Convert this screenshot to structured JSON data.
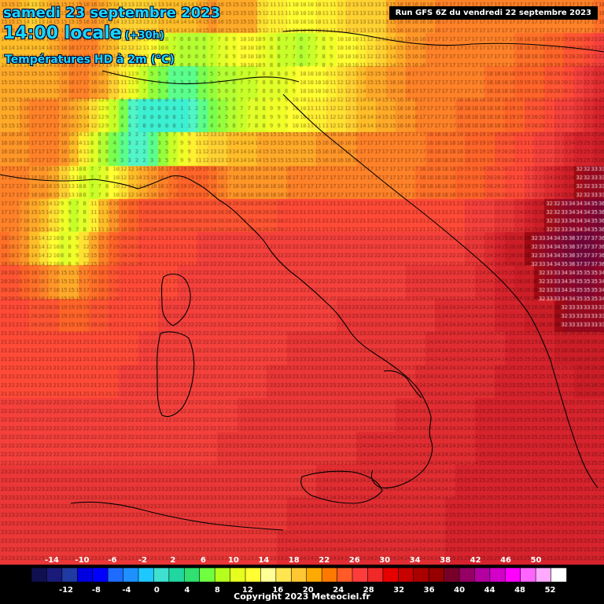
{
  "header": {
    "date": "samedi 23 septembre 2023",
    "time": "14:00 locale",
    "offset": "(+30h)",
    "variable": "Températures HD à 2m (°C)"
  },
  "run_info": "Run GFS 6Z du vendredi 22 septembre 2023",
  "copyright": "Copyright 2023 Meteociel.fr",
  "legend": {
    "labels_top": [
      "-14",
      "-10",
      "-6",
      "-2",
      "2",
      "6",
      "10",
      "14",
      "18",
      "22",
      "26",
      "30",
      "34",
      "38",
      "42",
      "46",
      "50"
    ],
    "labels_bottom": [
      "-12",
      "-8",
      "-4",
      "0",
      "4",
      "8",
      "12",
      "16",
      "20",
      "24",
      "28",
      "32",
      "36",
      "40",
      "44",
      "48",
      "52"
    ],
    "colors": [
      "#101050",
      "#1a1a7a",
      "#1f3aa0",
      "#0000e0",
      "#0000ff",
      "#1e6cff",
      "#1e90ff",
      "#1ec8ff",
      "#40e0d0",
      "#20d7a0",
      "#30e070",
      "#70ff40",
      "#b4ff1e",
      "#e6ff1e",
      "#ffff32",
      "#ffff96",
      "#ffe650",
      "#ffc832",
      "#ffaa00",
      "#ff7800",
      "#ff5a28",
      "#ff3c3c",
      "#f02828",
      "#e60000",
      "#c80000",
      "#aa0000",
      "#960000",
      "#780028",
      "#960064",
      "#b400a0",
      "#d200c8",
      "#ff00ff",
      "#ff64ff",
      "#ffaaff",
      "#ffffff"
    ]
  },
  "temperature_scale_colors": {
    "1": "#3cf0d2",
    "2": "#50f5c8",
    "3": "#5aff8c",
    "4": "#78ff50",
    "5": "#96ff3c",
    "6": "#b4ff32",
    "7": "#c8ff28",
    "8": "#e1ff28",
    "9": "#f0ff28",
    "10": "#ffff32",
    "11": "#fff032",
    "12": "#ffe132",
    "13": "#ffd232",
    "14": "#ffbe28",
    "15": "#ffaa28",
    "16": "#ff9628",
    "17": "#ff8228",
    "18": "#ff7028",
    "19": "#ff6428",
    "20": "#ff5532",
    "21": "#ff4a37",
    "22": "#f5403c",
    "23": "#eb3737",
    "24": "#e12d32",
    "25": "#d7232d",
    "26": "#cd1e28",
    "32": "#a00a14",
    "33": "#96081e",
    "34": "#8c0628",
    "35": "#82052d",
    "36": "#780432",
    "37": "#6e0337"
  },
  "grid_values": {
    "rows": [
      "15 15 14 13 14 15 15 15 16 16 15 14 13 13 13 13 14 14 14 14 15 16 15 15 15 15 12 11 11 10 10 10 11 11 12 13 13 13 13 15 16 16 16 16 17 17 17 17 17 17 17 17 17 17 17 17 17 17 17 17 18",
      "14 14 14 14 14 15 16 17 17 17 15 14 12 12 11 10 8 7 6 6 6 7 8 9 10 10 9 8 7 7 6 7 8 9 10 10 11 12 13 14 15 16 16 17 17 17 17 17 17 17 17 17 18 18 18 19 19 20 20 21 22",
      "15 15 15 15 15 15 16 17 17 16 15 13 11 9 7 5 4 3 3 3 4 5 6 6 7 7 8 8 8 9 10 10 10 11 12 13 14 15 15 16 16 17 17 17 17 17 17 17 17 18 18 18 19 19 19 20 20 21 22 23 24",
      "15 15 16 17 17 17 16 15 14 12 9 7 4 2 0 0 0 0 1 2 3 4 5 6 7 8 8 9 9 10 10 11 11 12 12 13 14 14 15 15 16 16 17 17 17 17 18 18 18 18 18 19 19 20 20 21 22 22 23 24 25",
      "16 16 16 17 17 17 16 14 11 8 6 4 3 2 2 3 5 7 9 11 12 13 13 14 14 14 15 15 15 15 15 15 16 16 16 16 17 17 17 17 17 17 17 18 18 18 18 19 19 19 20 20 21 21 22 22 23 24 25 25 26",
      "17 17 17 16 16 15 13 10 8 7 8 10 12 14 15 16 17 18 19 19 19 18 17 16 16 16 16 16 16 17 17 17 17 17 17 17 17 17 17 17 17 17 18 18 18 18 19 19 19 20 20 21 21 22 23 24 25 26 32 33 33",
      "17 17 16 15 14 12 9 7 8 11 14 16 18 19 20 20 20 20 20 20 20 20 20 20 20 20 20 20 21 21 21 21 21 21 21 21 21 21 21 21 21 21 21 21 21 21 21 22 22 22 23 23 24 25 26 32 33 34 34 35 36",
      "18 17 16 14 12 10 8 9 12 15 17 19 20 20 21 21 21 21 21 21 22 22 22 22 22 22 22 22 22 22 22 22 22 22 22 22 22 22 22 22 22 22 22 22 22 22 22 23 23 24 25 26 26 32 33 34 35 36 37 37 36",
      "20 20 19 18 17 16 15 15 17 18 19 20 21 21 21 21 21 21 22 22 22 22 22 22 22 22 22 22 22 22 22 22 22 22 22 22 22 22 22 22 22 23 23 23 23 23 23 23 24 24 25 25 26 26 32 33 34 34 35 35 34",
      "21 21 21 20 20 20 19 19 19 20 20 21 21 21 21 21 22 22 22 22 22 22 22 22 22 22 22 22 22 22 22 22 22 22 23 23 23 23 23 23 23 23 23 23 24 24 24 24 24 24 25 25 25 26 26 26 32 33 33 33 33",
      "21 21 21 21 21 21 21 21 21 21 21 21 21 21 22 22 22 22 22 22 22 22 22 22 22 22 22 22 22 23 23 23 23 23 23 23 23 23 23 23 23 23 23 24 24 24 24 24 24 24 24 25 25 25 25 25 26 26 26 26 26",
      "21 21 21 21 21 21 21 21 21 21 21 21 22 22 22 22 22 22 22 22 22 22 22 22 22 22 22 23 23 23 23 23 23 23 23 23 23 23 23 23 23 23 24 24 24 24 24 24 24 24 25 25 25 25 25 25 25 25 26 26 26",
      "22 22 22 22 22 22 22 22 22 22 22 22 22 22 22 22 22 22 22 22 22 22 22 22 23 23 23 23 23 23 23 23 23 23 23 23 23 23 23 23 24 24 24 24 24 24 24 24 25 25 25 25 25 25 25 25 25 25 25 25 25",
      "22 22 22 22 22 22 22 22 22 22 22 22 22 22 22 22 22 22 22 22 22 22 23 23 23 23 23 23 23 23 23 23 23 23 23 23 24 24 24 24 24 24 24 24 24 24 24 24 25 25 25 25 25 25 25 25 25 25 25 25 25",
      "23 23 23 23 23 23 23 23 23 23 23 23 23 23 23 23 23 23 23 23 23 23 23 23 23 23 23 23 23 23 23 23 24 24 24 24 24 24 24 24 24 24 24 24 24 24 25 25 25 25 25 25 25 25 25 25 25 25 25 25 25",
      "23 23 23 23 23 23 23 23 23 23 23 23 23 23 23 23 23 23 23 23 23 23 23 23 23 23 23 23 23 24 24 24 24 24 24 24 24 24 24 24 24 24 24 24 24 25 25 25 25 25 25 25 25 25 25 25 25 25 25 25 25",
      "23 23 23 23 23 23 23 23 23 23 23 23 23 23 23 23 23 23 23 23 23 23 23 23 23 23 23 23 24 24 24 24 24 24 24 24 24 24 24 24 24 24 24 24 24 25 25 25 25 25 25 25 25 25 25 25 25 25 25 25 25"
    ]
  }
}
